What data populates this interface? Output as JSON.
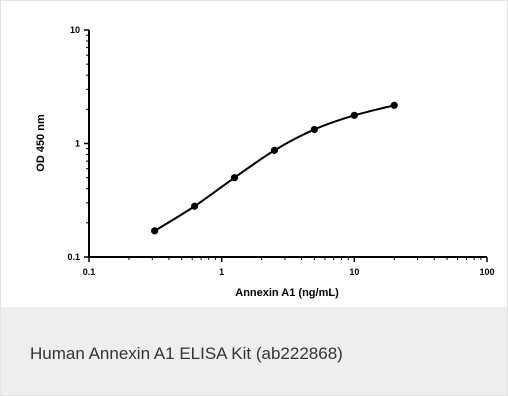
{
  "caption": "Human Annexin A1 ELISA Kit (ab222868)",
  "chart_data": {
    "type": "line",
    "title": "",
    "xlabel": "Annexin A1 (ng/mL)",
    "ylabel": "OD 450 nm",
    "x_scale": "log",
    "y_scale": "log",
    "xlim": [
      0.1,
      100
    ],
    "ylim": [
      0.1,
      10
    ],
    "x_ticks": [
      "0.1",
      "1",
      "10",
      "100"
    ],
    "y_ticks": [
      "0.1",
      "1",
      "10"
    ],
    "grid": false,
    "legend": "none",
    "series": [
      {
        "color": "#000000",
        "x": [
          0.3125,
          0.625,
          1.25,
          2.5,
          5,
          10,
          20
        ],
        "y": [
          0.17,
          0.28,
          0.5,
          0.87,
          1.33,
          1.77,
          2.17
        ]
      }
    ]
  }
}
